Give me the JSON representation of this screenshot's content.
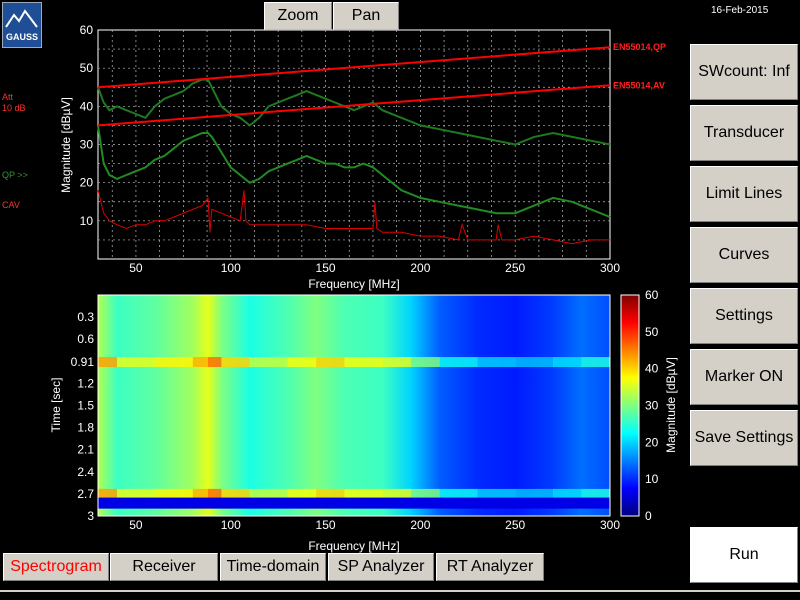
{
  "app": {
    "logo_text": "GAUSS",
    "date": "16-Feb-2015",
    "att_label": "Att",
    "att_value": "10 dB",
    "qp_label": "QP >>",
    "cav_label": "CAV"
  },
  "toolbar": {
    "zoom_label": "Zoom",
    "pan_label": "Pan"
  },
  "side_buttons": [
    {
      "label": "SWcount: Inf"
    },
    {
      "label": "Transducer"
    },
    {
      "label": "Limit Lines"
    },
    {
      "label": "Curves"
    },
    {
      "label": "Settings"
    },
    {
      "label": "Marker ON"
    },
    {
      "label": "Save Settings"
    }
  ],
  "run_button": {
    "label": "Run"
  },
  "tabs": [
    {
      "label": "Spectrogram",
      "active": true
    },
    {
      "label": "Receiver"
    },
    {
      "label": "Time-domain"
    },
    {
      "label": "SP Analyzer"
    },
    {
      "label": "RT Analyzer"
    }
  ],
  "colors": {
    "active_tab_text": "#ff0000",
    "limit_line": "#ff0000",
    "qp_trace": "#1f7a1f",
    "av_trace": "#228b22",
    "cav_trace": "#dd0000"
  },
  "chart_data": [
    {
      "type": "line",
      "xlabel": "Frequency [MHz]",
      "ylabel": "Magnitude [dBµV]",
      "xlim": [
        30,
        300
      ],
      "ylim": [
        0,
        60
      ],
      "xticks": [
        50,
        100,
        150,
        200,
        250,
        300
      ],
      "yticks": [
        10,
        20,
        30,
        40,
        50,
        60
      ],
      "grid": true,
      "series": [
        {
          "name": "EN55014,QP",
          "x": [
            30,
            300
          ],
          "y": [
            45,
            55.5
          ]
        },
        {
          "name": "EN55014,AV",
          "x": [
            30,
            300
          ],
          "y": [
            35,
            45.5
          ]
        },
        {
          "x": [
            30,
            33,
            36,
            40,
            45,
            50,
            55,
            60,
            65,
            70,
            75,
            80,
            85,
            88,
            90,
            95,
            100,
            105,
            110,
            115,
            120,
            125,
            130,
            135,
            140,
            145,
            150,
            155,
            160,
            165,
            170,
            175,
            180,
            190,
            200,
            210,
            220,
            230,
            240,
            250,
            260,
            270,
            280,
            290,
            300
          ],
          "y": [
            45,
            41,
            39,
            40,
            39,
            38,
            37,
            40,
            42,
            43,
            44,
            46,
            47,
            47,
            45,
            40,
            38,
            37,
            35,
            37,
            40,
            41,
            42,
            43,
            44,
            43,
            42,
            41,
            40,
            39,
            40,
            41,
            39,
            37,
            35,
            34,
            33,
            32,
            31,
            30,
            32,
            33,
            32,
            31,
            30
          ]
        },
        {
          "x": [
            30,
            33,
            36,
            40,
            45,
            50,
            55,
            60,
            65,
            70,
            75,
            80,
            85,
            88,
            90,
            95,
            100,
            105,
            110,
            115,
            120,
            125,
            130,
            135,
            140,
            145,
            150,
            155,
            160,
            165,
            170,
            175,
            180,
            190,
            200,
            210,
            220,
            230,
            240,
            250,
            260,
            270,
            280,
            290,
            300
          ],
          "y": [
            35,
            25,
            22,
            21,
            22,
            23,
            24,
            26,
            27,
            29,
            31,
            32,
            33,
            33,
            32,
            28,
            24,
            22,
            20,
            21,
            23,
            24,
            25,
            26,
            27,
            26,
            25,
            25,
            24,
            24,
            25,
            24,
            22,
            18,
            16,
            15,
            14,
            13,
            12,
            12,
            14,
            16,
            15,
            13,
            11
          ]
        },
        {
          "x": [
            30,
            33,
            36,
            40,
            45,
            50,
            55,
            60,
            65,
            70,
            75,
            80,
            85,
            88,
            89,
            90,
            95,
            100,
            105,
            107,
            108,
            110,
            120,
            130,
            140,
            150,
            160,
            170,
            175,
            176,
            177,
            180,
            190,
            200,
            210,
            220,
            222,
            225,
            230,
            240,
            241,
            243,
            250,
            260,
            270,
            280,
            290,
            300
          ],
          "y": [
            18,
            12,
            10,
            9,
            8,
            9,
            9,
            10,
            10,
            11,
            12,
            13,
            14,
            16,
            7,
            13,
            12,
            11,
            10,
            18,
            10,
            9,
            9,
            9,
            9,
            8,
            8,
            8,
            8,
            15,
            8,
            7,
            7,
            6,
            6,
            5,
            9,
            5,
            5,
            5,
            9,
            5,
            5,
            6,
            5,
            4,
            5,
            5
          ]
        }
      ],
      "annotations": [
        "EN55014,QP",
        "EN55014,AV"
      ]
    },
    {
      "type": "heatmap",
      "xlabel": "Frequency [MHz]",
      "ylabel": "Time [sec]",
      "xlim": [
        30,
        300
      ],
      "xticks": [
        50,
        100,
        150,
        200,
        250,
        300
      ],
      "yticks": [
        "0.3",
        "0.6",
        "0.91",
        "1.2",
        "1.5",
        "1.8",
        "2.1",
        "2.4",
        "2.7",
        "3"
      ],
      "colorbar": {
        "label": "Magnitude [dBµV]",
        "ticks": [
          0,
          10,
          20,
          30,
          40,
          50,
          60
        ],
        "range": [
          0,
          60
        ]
      },
      "freq_profile": [
        {
          "x": 30,
          "y": 33
        },
        {
          "x": 40,
          "y": 26
        },
        {
          "x": 60,
          "y": 28
        },
        {
          "x": 80,
          "y": 32
        },
        {
          "x": 88,
          "y": 36
        },
        {
          "x": 95,
          "y": 30
        },
        {
          "x": 110,
          "y": 24
        },
        {
          "x": 130,
          "y": 27
        },
        {
          "x": 145,
          "y": 30
        },
        {
          "x": 160,
          "y": 27
        },
        {
          "x": 180,
          "y": 26
        },
        {
          "x": 195,
          "y": 20
        },
        {
          "x": 210,
          "y": 13
        },
        {
          "x": 230,
          "y": 10
        },
        {
          "x": 250,
          "y": 9
        },
        {
          "x": 270,
          "y": 11
        },
        {
          "x": 285,
          "y": 14
        },
        {
          "x": 300,
          "y": 12
        }
      ],
      "bright_rows_sec": [
        0.91,
        2.7
      ],
      "dark_band_sec": [
        2.75,
        2.9
      ]
    }
  ]
}
